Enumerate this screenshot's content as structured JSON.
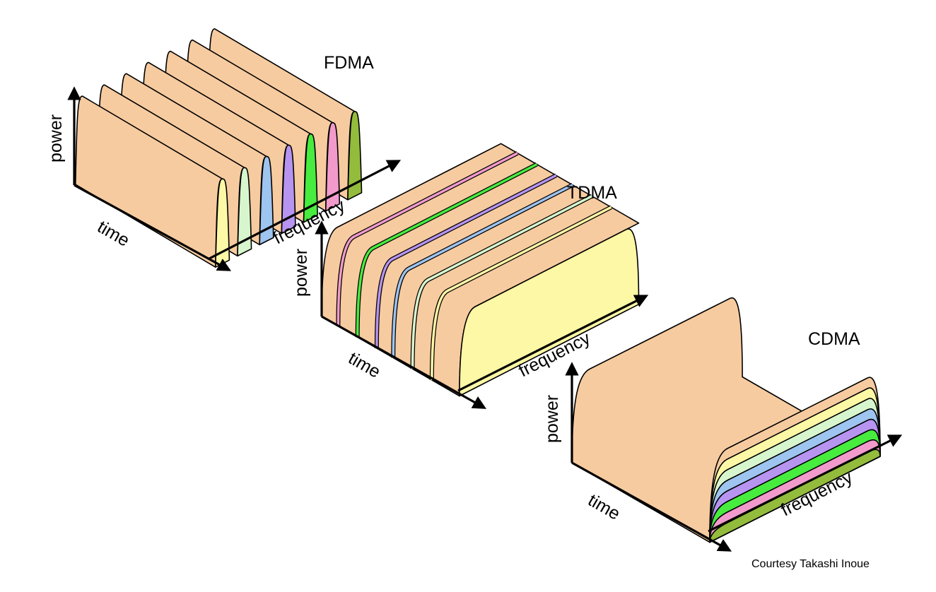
{
  "colors": {
    "body": "#F7CBA0",
    "channels": [
      "#FDF8A6",
      "#D8F6CE",
      "#9EC4F0",
      "#B694F0",
      "#47EC3F",
      "#F29ACB",
      "#93BC3C"
    ]
  },
  "fdma": {
    "title": "FDMA",
    "axis_power": "power",
    "axis_time": "time",
    "axis_frequency": "frequency"
  },
  "tdma": {
    "title": "TDMA",
    "axis_power": "power",
    "axis_time": "time",
    "axis_frequency": "frequency"
  },
  "cdma": {
    "title": "CDMA",
    "axis_power": "power",
    "axis_time": "time",
    "axis_frequency": "frequency"
  },
  "credit": "Courtesy Takashi Inoue"
}
